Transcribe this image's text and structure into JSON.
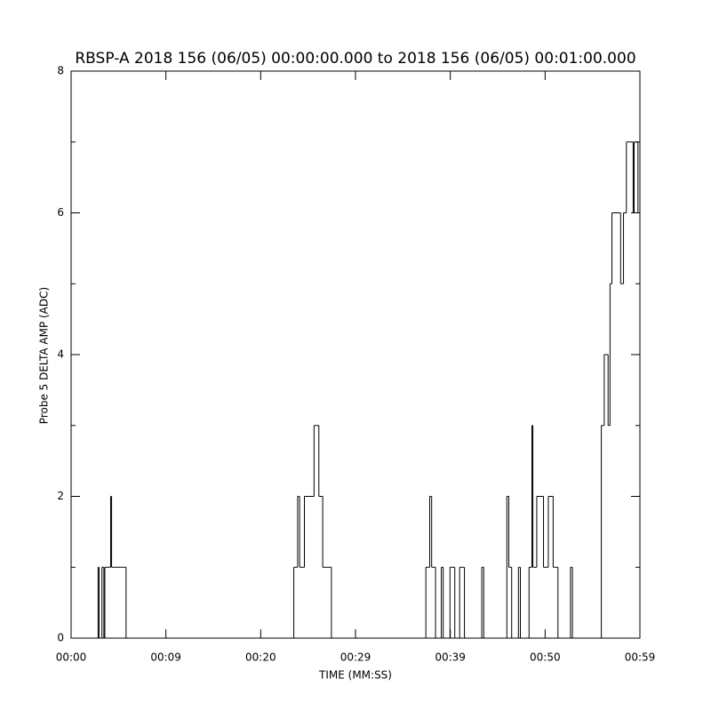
{
  "chart_data": {
    "type": "step",
    "title": "RBSP-A 2018 156 (06/05) 00:00:00.000 to 2018 156 (06/05) 00:01:00.000",
    "x_label": "TIME (MM:SS)",
    "y_label": "Probe 5 DELTA AMP (ADC)",
    "color": "#000000",
    "xlim": [
      0,
      59
    ],
    "xticks": [
      {
        "value": 0,
        "label": "00:00"
      },
      {
        "value": 9.833,
        "label": "00:09"
      },
      {
        "value": 19.667,
        "label": "00:20"
      },
      {
        "value": 29.5,
        "label": "00:29"
      },
      {
        "value": 39.333,
        "label": "00:39"
      },
      {
        "value": 49.167,
        "label": "00:50"
      },
      {
        "value": 59,
        "label": "00:59"
      }
    ],
    "ylim": [
      0,
      8
    ],
    "yticks": [
      0,
      2,
      4,
      6,
      8
    ],
    "y_minor_ticks": [
      1,
      3,
      5,
      7
    ],
    "x": [
      0,
      2.8,
      2.9,
      3.2,
      3.4,
      3.5,
      4.1,
      4.2,
      5.7,
      23.1,
      23.5,
      23.7,
      24.2,
      25.2,
      25.7,
      26.1,
      27.0,
      36.8,
      37.2,
      37.4,
      37.8,
      38.4,
      38.6,
      39.3,
      39.8,
      40.3,
      40.8,
      42.6,
      42.8,
      45.2,
      45.4,
      45.7,
      46.4,
      46.6,
      47.5,
      47.8,
      47.9,
      48.3,
      49.0,
      49.5,
      50.0,
      50.5,
      51.8,
      52.0,
      55.0,
      55.3,
      55.7,
      55.9,
      56.1,
      57.0,
      57.3,
      57.6,
      58.3,
      58.4,
      58.8,
      59
    ],
    "values": [
      0,
      1,
      0,
      1,
      0,
      1,
      2,
      1,
      0,
      1,
      2,
      1,
      2,
      3,
      2,
      1,
      0,
      1,
      2,
      1,
      0,
      1,
      0,
      1,
      0,
      1,
      0,
      1,
      0,
      2,
      1,
      0,
      1,
      0,
      1,
      3,
      1,
      2,
      1,
      2,
      1,
      0,
      1,
      0,
      3,
      4,
      3,
      5,
      6,
      5,
      6,
      7,
      6,
      7,
      6,
      6
    ]
  }
}
